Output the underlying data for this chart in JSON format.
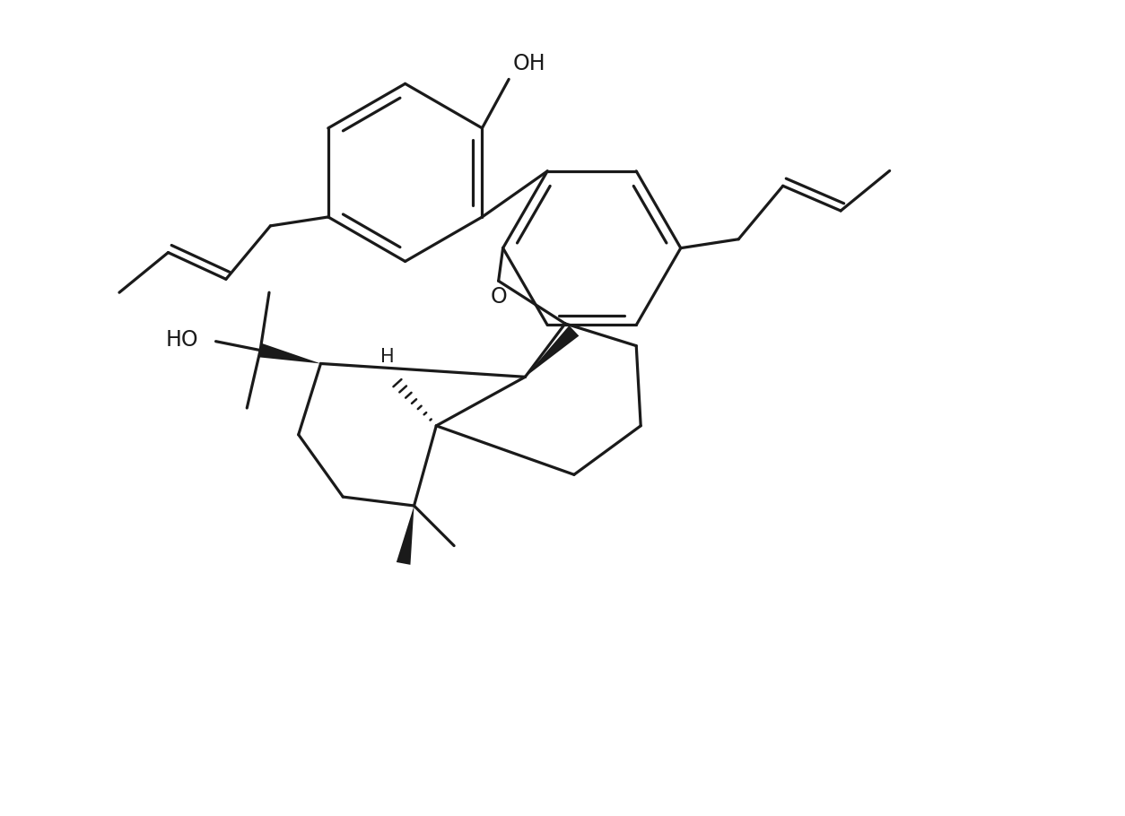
{
  "bg_color": "#ffffff",
  "bond_color": "#1a1a1a",
  "bond_lw": 2.3,
  "text_color": "#1a1a1a",
  "font_size": 15,
  "figsize": [
    12.54,
    9.1
  ],
  "xlim": [
    0,
    12.54
  ],
  "ylim": [
    0,
    9.1
  ]
}
